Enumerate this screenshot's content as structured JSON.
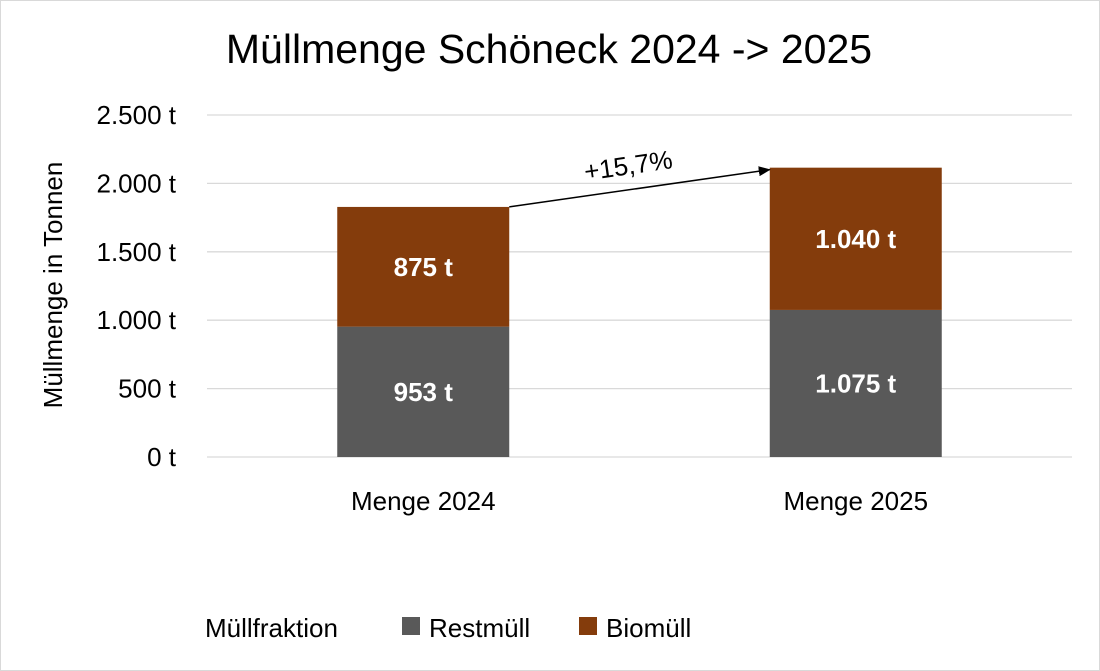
{
  "chart_data": {
    "type": "bar",
    "stacked": true,
    "title": "Müllmenge Schöneck 2024 -> 2025",
    "ylabel": "Müllmenge in Tonnen",
    "xlabel": "",
    "categories": [
      "Menge 2024",
      "Menge 2025"
    ],
    "series": [
      {
        "name": "Restmüll",
        "values": [
          953,
          1075
        ],
        "labels": [
          "953 t",
          "1.075 t"
        ],
        "color": "#595959"
      },
      {
        "name": "Biomüll",
        "values": [
          875,
          1040
        ],
        "labels": [
          "875 t",
          "1.040 t"
        ],
        "color": "#843C0C"
      }
    ],
    "ylim": [
      0,
      2500
    ],
    "yticks": [
      0,
      500,
      1000,
      1500,
      2000,
      2500
    ],
    "ytick_labels": [
      "0 t",
      "500 t",
      "1.000 t",
      "1.500 t",
      "2.000 t",
      "2.500 t"
    ],
    "grid": true,
    "annotation": {
      "text": "+15,7%",
      "from_category": "Menge 2024",
      "to_category": "Menge 2025"
    },
    "legend": {
      "title": "Müllfraktion",
      "placement": "bottom",
      "entries": [
        "Restmüll",
        "Biomüll"
      ]
    },
    "colors": {
      "grid": "#d9d9d9",
      "axis": "#d9d9d9",
      "text": "#000000",
      "label_text": "#ffffff"
    }
  }
}
